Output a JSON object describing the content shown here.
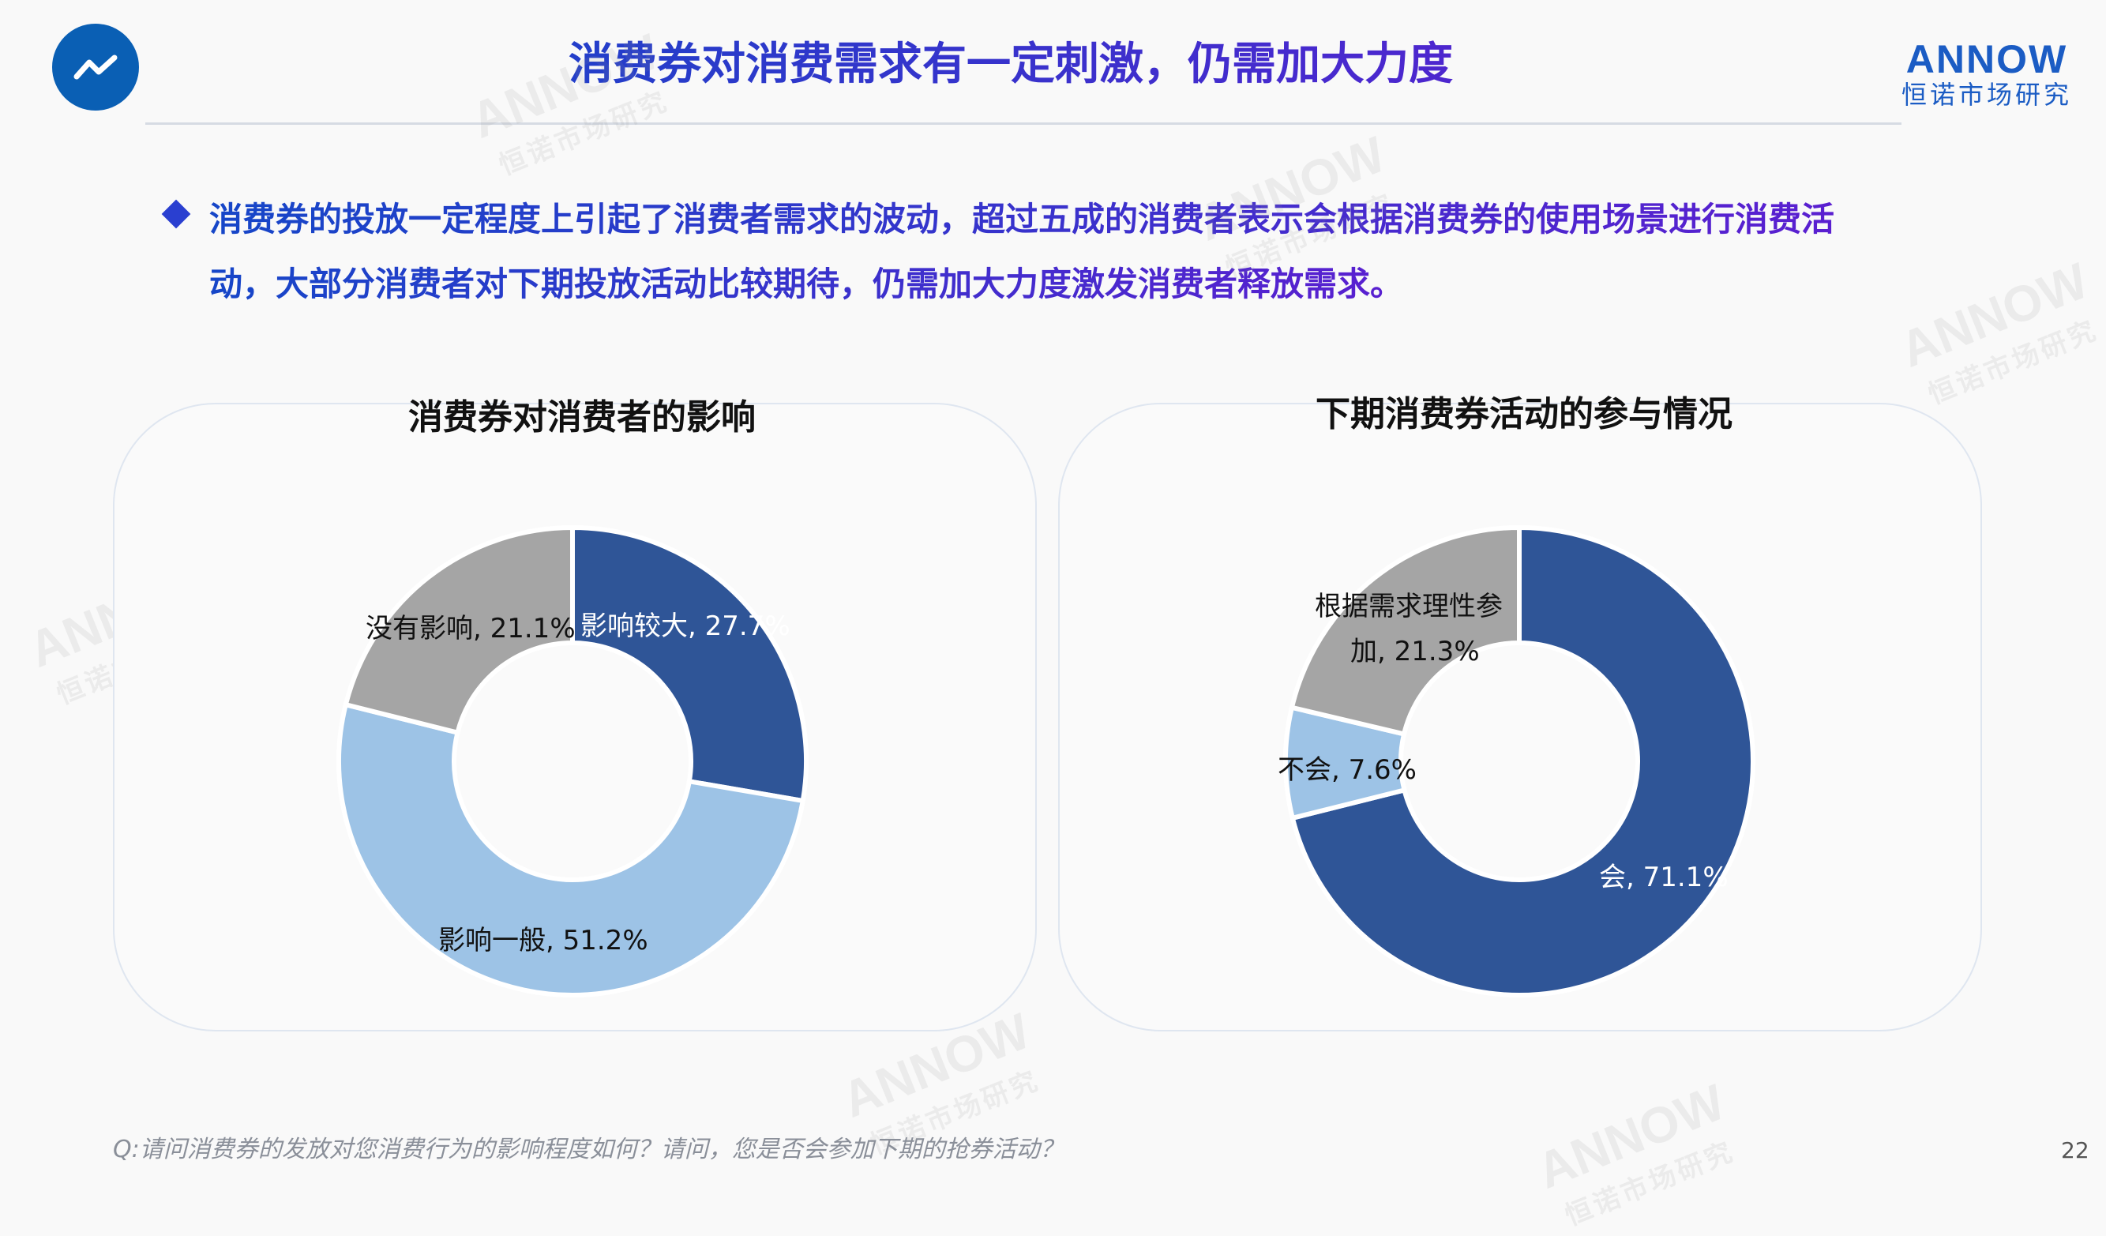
{
  "header": {
    "title": "消费券对消费需求有一定刺激，仍需加大力度",
    "icon": "trend-line-icon",
    "brand_en": "ANNOW",
    "brand_cn": "恒诺市场研究"
  },
  "summary": {
    "lines": [
      "消费券的投放一定程度上引起了消费者需求的波动，超过五成的消费者表示会根据消费券的使用场景进行消费活",
      "动，大部分消费者对下期投放活动比较期待，仍需加大力度激发消费者释放需求。"
    ]
  },
  "watermark": {
    "en": "ANNOW",
    "cn": "恒诺市场研究"
  },
  "chart_data": [
    {
      "type": "pie",
      "title": "消费券对消费者的影响",
      "categories": [
        "影响较大",
        "影响一般",
        "没有影响"
      ],
      "values": [
        27.7,
        51.2,
        21.1
      ],
      "colors": [
        "#2F5597",
        "#9DC3E6",
        "#A5A5A5"
      ],
      "labels": [
        "影响较大, 27.7%",
        "影响一般, 51.2%",
        "没有影响, 21.1%"
      ],
      "donut": true
    },
    {
      "type": "pie",
      "title": "下期消费券活动的参与情况",
      "categories": [
        "会",
        "不会",
        "根据需求理性参加"
      ],
      "values": [
        71.1,
        7.6,
        21.3
      ],
      "colors": [
        "#2F5597",
        "#9DC3E6",
        "#A5A5A5"
      ],
      "labels": [
        "会, 71.1%",
        "不会, 7.6%",
        "根据需求理性参加, 21.3%"
      ],
      "label_lines": [
        "根据需求理性参",
        "加, 21.3%"
      ],
      "donut": true
    }
  ],
  "footer": {
    "question": "Q:请问消费券的发放对您消费行为的影响程度如何？请问，您是否会参加下期的抢券活动？",
    "page_number": "22"
  }
}
